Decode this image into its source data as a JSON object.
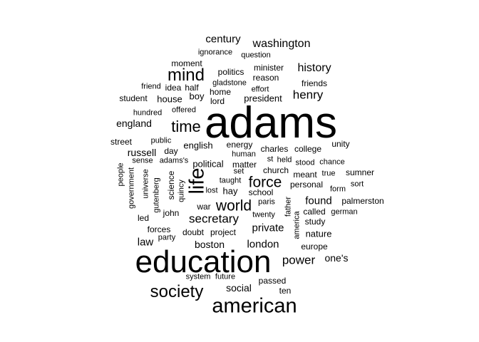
{
  "wordcloud": {
    "color": "#000000",
    "words": [
      {
        "text": "adams",
        "weight": 100
      },
      {
        "text": "education",
        "weight": 52
      },
      {
        "text": "american",
        "weight": 32
      },
      {
        "text": "life",
        "weight": 31
      },
      {
        "text": "society",
        "weight": 28
      },
      {
        "text": "mind",
        "weight": 27
      },
      {
        "text": "time",
        "weight": 25
      },
      {
        "text": "world",
        "weight": 24
      },
      {
        "text": "force",
        "weight": 23
      },
      {
        "text": "secretary",
        "weight": 20
      },
      {
        "text": "power",
        "weight": 19
      },
      {
        "text": "henry",
        "weight": 19
      },
      {
        "text": "history",
        "weight": 18
      },
      {
        "text": "washington",
        "weight": 18
      },
      {
        "text": "private",
        "weight": 17
      },
      {
        "text": "found",
        "weight": 17
      },
      {
        "text": "law",
        "weight": 16
      },
      {
        "text": "century",
        "weight": 16
      },
      {
        "text": "london",
        "weight": 16
      },
      {
        "text": "russell",
        "weight": 15
      },
      {
        "text": "one's",
        "weight": 15
      },
      {
        "text": "boston",
        "weight": 15
      },
      {
        "text": "england",
        "weight": 15
      },
      {
        "text": "social",
        "weight": 15
      },
      {
        "text": "nature",
        "weight": 14
      },
      {
        "text": "political",
        "weight": 14
      },
      {
        "text": "english",
        "weight": 14
      },
      {
        "text": "hay",
        "weight": 14
      },
      {
        "text": "house",
        "weight": 14
      },
      {
        "text": "president",
        "weight": 14
      },
      {
        "text": "boy",
        "weight": 14
      },
      {
        "text": "minister",
        "weight": 13
      },
      {
        "text": "friends",
        "weight": 13
      },
      {
        "text": "moment",
        "weight": 13
      },
      {
        "text": "college",
        "weight": 13
      },
      {
        "text": "personal",
        "weight": 13
      },
      {
        "text": "sumner",
        "weight": 13
      },
      {
        "text": "palmerston",
        "weight": 13
      },
      {
        "text": "europe",
        "weight": 13
      },
      {
        "text": "forces",
        "weight": 13
      },
      {
        "text": "matter",
        "weight": 13
      },
      {
        "text": "energy",
        "weight": 13
      },
      {
        "text": "street",
        "weight": 12
      },
      {
        "text": "student",
        "weight": 12
      },
      {
        "text": "politics",
        "weight": 12
      },
      {
        "text": "reason",
        "weight": 12
      },
      {
        "text": "half",
        "weight": 12
      },
      {
        "text": "idea",
        "weight": 12
      },
      {
        "text": "day",
        "weight": 12
      },
      {
        "text": "science",
        "weight": 12
      },
      {
        "text": "school",
        "weight": 12
      },
      {
        "text": "charles",
        "weight": 12
      },
      {
        "text": "unity",
        "weight": 12
      },
      {
        "text": "meant",
        "weight": 12
      },
      {
        "text": "called",
        "weight": 12
      },
      {
        "text": "study",
        "weight": 12
      },
      {
        "text": "doubt",
        "weight": 12
      },
      {
        "text": "project",
        "weight": 12
      },
      {
        "text": "john",
        "weight": 12
      },
      {
        "text": "war",
        "weight": 12
      },
      {
        "text": "led",
        "weight": 12
      },
      {
        "text": "church",
        "weight": 12
      },
      {
        "text": "ten",
        "weight": 12
      },
      {
        "text": "passed",
        "weight": 12
      },
      {
        "text": "lord",
        "weight": 12
      },
      {
        "text": "home",
        "weight": 12
      },
      {
        "text": "people",
        "weight": 11
      },
      {
        "text": "government",
        "weight": 11
      },
      {
        "text": "sense",
        "weight": 11
      },
      {
        "text": "adams's",
        "weight": 11
      },
      {
        "text": "friend",
        "weight": 11
      },
      {
        "text": "ignorance",
        "weight": 11
      },
      {
        "text": "question",
        "weight": 11
      },
      {
        "text": "gladstone",
        "weight": 11
      },
      {
        "text": "effort",
        "weight": 11
      },
      {
        "text": "hundred",
        "weight": 11
      },
      {
        "text": "offered",
        "weight": 11
      },
      {
        "text": "public",
        "weight": 11
      },
      {
        "text": "human",
        "weight": 11
      },
      {
        "text": "st",
        "weight": 11
      },
      {
        "text": "held",
        "weight": 11
      },
      {
        "text": "stood",
        "weight": 11
      },
      {
        "text": "chance",
        "weight": 11
      },
      {
        "text": "taught",
        "weight": 11
      },
      {
        "text": "set",
        "weight": 11
      },
      {
        "text": "true",
        "weight": 11
      },
      {
        "text": "sort",
        "weight": 11
      },
      {
        "text": "form",
        "weight": 11
      },
      {
        "text": "lost",
        "weight": 11
      },
      {
        "text": "paris",
        "weight": 11
      },
      {
        "text": "german",
        "weight": 11
      },
      {
        "text": "twenty",
        "weight": 11
      },
      {
        "text": "father",
        "weight": 11
      },
      {
        "text": "america",
        "weight": 11
      },
      {
        "text": "party",
        "weight": 11
      },
      {
        "text": "quincy",
        "weight": 11
      },
      {
        "text": "gutenberg",
        "weight": 11
      },
      {
        "text": "universe",
        "weight": 11
      },
      {
        "text": "system",
        "weight": 11
      },
      {
        "text": "future",
        "weight": 11
      }
    ]
  }
}
